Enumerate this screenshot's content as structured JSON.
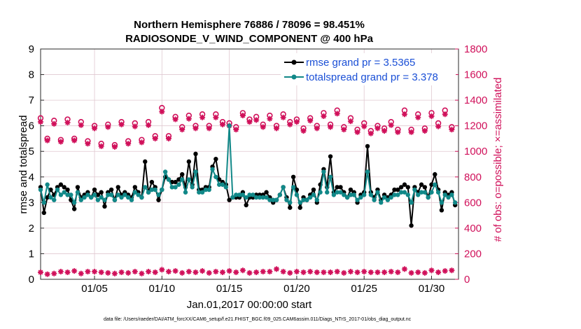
{
  "chart_data": {
    "type": "line",
    "title_line1": "Northern Hemisphere 76886 / 78096 = 98.451%",
    "title_line2": "RADIOSONDE_V_WIND_COMPONENT @ 400 hPa",
    "xlabel": "Jan.01,2017 00:00:00 start",
    "ylabel_left": "rmse and totalspread",
    "ylabel_right": "# of obs: o=possible; ×=assimilated",
    "footer": "data file: /Users/raeder/DAI/ATM_forcXX/CAM6_setup/f.e21.FHIST_BGC.f09_025.CAM6assim.011/Diags_NTrS_2017-01/obs_diag_output.nc",
    "xlim": [
      1,
      32
    ],
    "ylim_left": [
      0,
      9
    ],
    "ylim_right": [
      0,
      1800
    ],
    "x_ticks": [
      5,
      10,
      15,
      20,
      25,
      30
    ],
    "x_tick_labels": [
      "01/05",
      "01/10",
      "01/15",
      "01/20",
      "01/25",
      "01/30"
    ],
    "y_left_ticks": [
      "0",
      "1",
      "2",
      "3",
      "4",
      "5",
      "6",
      "7",
      "8",
      "9"
    ],
    "y_right_ticks": [
      "0",
      "200",
      "400",
      "600",
      "800",
      "1000",
      "1200",
      "1400",
      "1600",
      "1800"
    ],
    "colors": {
      "rmse": "#000000",
      "spread": "#118888",
      "obs": "#d0105a",
      "grid": "#e0c8d0",
      "legend_text": "#1a4fd6"
    },
    "legend": [
      {
        "key": "rmse",
        "label": "rmse grand pr = 3.5365"
      },
      {
        "key": "spread",
        "label": "totalspread grand pr = 3.378"
      }
    ],
    "series": [
      {
        "name": "rmse",
        "axis": "left",
        "x": [
          1.0,
          1.25,
          1.5,
          1.75,
          2.0,
          2.25,
          2.5,
          2.75,
          3.0,
          3.25,
          3.5,
          3.75,
          4.0,
          4.25,
          4.5,
          4.75,
          5.0,
          5.25,
          5.5,
          5.75,
          6.0,
          6.25,
          6.5,
          6.75,
          7.0,
          7.25,
          7.5,
          7.75,
          8.0,
          8.25,
          8.5,
          8.75,
          9.0,
          9.25,
          9.5,
          9.75,
          10.0,
          10.25,
          10.5,
          10.75,
          11.0,
          11.25,
          11.5,
          11.75,
          12.0,
          12.25,
          12.5,
          12.75,
          13.0,
          13.25,
          13.5,
          13.75,
          14.0,
          14.25,
          14.5,
          14.75,
          15.0,
          15.25,
          15.5,
          15.75,
          16.0,
          16.25,
          16.5,
          16.75,
          17.0,
          17.25,
          17.5,
          17.75,
          18.0,
          18.25,
          18.5,
          18.75,
          19.0,
          19.25,
          19.5,
          19.75,
          20.0,
          20.25,
          20.5,
          20.75,
          21.0,
          21.25,
          21.5,
          21.75,
          22.0,
          22.25,
          22.5,
          22.75,
          23.0,
          23.25,
          23.5,
          23.75,
          24.0,
          24.25,
          24.5,
          24.75,
          25.0,
          25.25,
          25.5,
          25.75,
          26.0,
          26.25,
          26.5,
          26.75,
          27.0,
          27.25,
          27.5,
          27.75,
          28.0,
          28.25,
          28.5,
          28.75,
          29.0,
          29.25,
          29.5,
          29.75,
          30.0,
          30.25,
          30.5,
          30.75,
          31.0,
          31.25,
          31.5,
          31.75
        ],
        "y": [
          3.6,
          2.6,
          3.2,
          3.5,
          3.3,
          3.6,
          3.7,
          3.6,
          3.5,
          3.1,
          2.75,
          3.6,
          3.2,
          3.3,
          3.4,
          3.2,
          3.5,
          3.3,
          3.4,
          2.85,
          3.4,
          3.5,
          3.1,
          3.6,
          3.3,
          3.4,
          3.3,
          3.2,
          3.6,
          3.4,
          3.2,
          4.6,
          3.4,
          3.8,
          3.6,
          3.1,
          3.5,
          4.0,
          3.9,
          3.8,
          3.8,
          3.9,
          4.1,
          3.6,
          4.6,
          3.7,
          4.9,
          3.5,
          3.5,
          3.6,
          3.6,
          4.4,
          4.7,
          3.9,
          3.8,
          3.7,
          3.1,
          3.2,
          3.2,
          3.2,
          3.4,
          2.9,
          3.2,
          3.2,
          3.3,
          3.3,
          3.3,
          3.4,
          3.2,
          3.0,
          3.1,
          3.3,
          3.6,
          3.2,
          2.8,
          4.0,
          3.5,
          2.8,
          3.2,
          3.1,
          3.3,
          3.5,
          3.0,
          3.7,
          4.3,
          3.6,
          4.8,
          3.4,
          3.6,
          3.6,
          3.4,
          3.2,
          3.5,
          3.4,
          3.0,
          3.3,
          3.4,
          5.2,
          3.4,
          3.2,
          3.5,
          3.1,
          3.3,
          3.2,
          3.3,
          3.5,
          3.5,
          3.6,
          3.7,
          3.6,
          2.1,
          3.6,
          3.4,
          3.7,
          3.6,
          3.2,
          3.7,
          4.1,
          3.5,
          2.7,
          3.4,
          3.3,
          3.4,
          2.9
        ]
      },
      {
        "name": "totalspread",
        "axis": "left",
        "x": [
          1.0,
          1.25,
          1.5,
          1.75,
          2.0,
          2.25,
          2.5,
          2.75,
          3.0,
          3.25,
          3.5,
          3.75,
          4.0,
          4.25,
          4.5,
          4.75,
          5.0,
          5.25,
          5.5,
          5.75,
          6.0,
          6.25,
          6.5,
          6.75,
          7.0,
          7.25,
          7.5,
          7.75,
          8.0,
          8.25,
          8.5,
          8.75,
          9.0,
          9.25,
          9.5,
          9.75,
          10.0,
          10.25,
          10.5,
          10.75,
          11.0,
          11.25,
          11.5,
          11.75,
          12.0,
          12.25,
          12.5,
          12.75,
          13.0,
          13.25,
          13.5,
          13.75,
          14.0,
          14.25,
          14.5,
          14.75,
          15.0,
          15.25,
          15.5,
          15.75,
          16.0,
          16.25,
          16.5,
          16.75,
          17.0,
          17.25,
          17.5,
          17.75,
          18.0,
          18.25,
          18.5,
          18.75,
          19.0,
          19.25,
          19.5,
          19.75,
          20.0,
          20.25,
          20.5,
          20.75,
          21.0,
          21.25,
          21.5,
          21.75,
          22.0,
          22.25,
          22.5,
          22.75,
          23.0,
          23.25,
          23.5,
          23.75,
          24.0,
          24.25,
          24.5,
          24.75,
          25.0,
          25.25,
          25.5,
          25.75,
          26.0,
          26.25,
          26.5,
          26.75,
          27.0,
          27.25,
          27.5,
          27.75,
          28.0,
          28.25,
          28.5,
          28.75,
          29.0,
          29.25,
          29.5,
          29.75,
          30.0,
          30.25,
          30.5,
          30.75,
          31.0,
          31.25,
          31.5,
          31.75
        ],
        "y": [
          3.5,
          3.0,
          3.7,
          3.2,
          3.1,
          3.5,
          3.3,
          3.4,
          3.3,
          3.3,
          3.0,
          3.4,
          3.1,
          3.2,
          3.3,
          3.2,
          3.3,
          3.1,
          3.2,
          3.1,
          3.3,
          3.3,
          3.1,
          3.3,
          3.2,
          3.3,
          3.2,
          3.1,
          3.4,
          3.3,
          3.2,
          3.6,
          3.4,
          3.5,
          3.5,
          3.3,
          3.5,
          4.2,
          3.9,
          3.6,
          3.6,
          3.7,
          3.9,
          3.4,
          3.9,
          3.6,
          4.2,
          3.4,
          3.4,
          3.5,
          3.5,
          4.3,
          4.0,
          3.7,
          3.7,
          3.6,
          6.0,
          3.2,
          3.3,
          3.3,
          3.3,
          3.2,
          3.3,
          3.3,
          3.2,
          3.2,
          3.2,
          3.2,
          3.1,
          3.1,
          3.1,
          3.3,
          3.6,
          3.1,
          3.0,
          3.6,
          3.3,
          3.0,
          3.1,
          3.1,
          3.2,
          3.3,
          3.1,
          3.4,
          4.2,
          3.4,
          4.0,
          3.3,
          3.4,
          3.4,
          3.3,
          3.2,
          3.3,
          3.3,
          3.1,
          3.2,
          3.3,
          4.2,
          3.3,
          3.1,
          3.4,
          3.0,
          3.2,
          3.1,
          3.2,
          3.3,
          3.3,
          3.4,
          3.4,
          3.3,
          3.0,
          3.5,
          3.3,
          3.4,
          3.4,
          3.2,
          3.4,
          3.7,
          3.4,
          3.0,
          3.3,
          3.2,
          3.3,
          3.0
        ]
      },
      {
        "name": "obs_possible",
        "axis": "right",
        "x": [
          1.0,
          1.5,
          2.0,
          2.5,
          3.0,
          3.5,
          4.0,
          4.5,
          5.0,
          5.5,
          6.0,
          6.5,
          7.0,
          7.5,
          8.0,
          8.5,
          9.0,
          9.5,
          10.0,
          10.5,
          11.0,
          11.5,
          12.0,
          12.5,
          13.0,
          13.5,
          14.0,
          14.5,
          15.0,
          15.5,
          16.0,
          16.5,
          17.0,
          17.5,
          18.0,
          18.5,
          19.0,
          19.5,
          20.0,
          20.5,
          21.0,
          21.5,
          22.0,
          22.5,
          23.0,
          23.5,
          24.0,
          24.5,
          25.0,
          25.5,
          26.0,
          26.5,
          27.0,
          27.5,
          28.0,
          28.5,
          29.0,
          29.5,
          30.0,
          30.5,
          31.0,
          31.5
        ],
        "y": [
          1260,
          1100,
          1240,
          1090,
          1250,
          1100,
          1230,
          1080,
          1200,
          1060,
          1210,
          1050,
          1230,
          1080,
          1220,
          1090,
          1230,
          1120,
          1340,
          1120,
          1270,
          1190,
          1280,
          1200,
          1290,
          1200,
          1290,
          1230,
          1220,
          1190,
          1300,
          1250,
          1270,
          1210,
          1280,
          1200,
          1290,
          1230,
          1250,
          1180,
          1260,
          1200,
          1300,
          1210,
          1320,
          1190,
          1260,
          1170,
          1220,
          1160,
          1200,
          1180,
          1230,
          1170,
          1320,
          1170,
          1290,
          1180,
          1300,
          1220,
          1320,
          1190
        ]
      },
      {
        "name": "obs_assimilated",
        "axis": "right",
        "x": [
          1.0,
          1.5,
          2.0,
          2.5,
          3.0,
          3.5,
          4.0,
          4.5,
          5.0,
          5.5,
          6.0,
          6.5,
          7.0,
          7.5,
          8.0,
          8.5,
          9.0,
          9.5,
          10.0,
          10.5,
          11.0,
          11.5,
          12.0,
          12.5,
          13.0,
          13.5,
          14.0,
          14.5,
          15.0,
          15.5,
          16.0,
          16.5,
          17.0,
          17.5,
          18.0,
          18.5,
          19.0,
          19.5,
          20.0,
          20.5,
          21.0,
          21.5,
          22.0,
          22.5,
          23.0,
          23.5,
          24.0,
          24.5,
          25.0,
          25.5,
          26.0,
          26.5,
          27.0,
          27.5,
          28.0,
          28.5,
          29.0,
          29.5,
          30.0,
          30.5,
          31.0,
          31.5
        ],
        "y": [
          1230,
          1085,
          1215,
          1075,
          1225,
          1085,
          1205,
          1060,
          1180,
          1040,
          1190,
          1035,
          1210,
          1060,
          1195,
          1070,
          1205,
          1100,
          1310,
          1100,
          1250,
          1170,
          1255,
          1180,
          1265,
          1180,
          1265,
          1210,
          1200,
          1170,
          1280,
          1230,
          1245,
          1190,
          1255,
          1180,
          1265,
          1210,
          1230,
          1160,
          1240,
          1180,
          1275,
          1190,
          1295,
          1170,
          1235,
          1150,
          1195,
          1140,
          1180,
          1160,
          1205,
          1150,
          1290,
          1150,
          1265,
          1160,
          1275,
          1195,
          1290,
          1170
        ]
      },
      {
        "name": "obs_bottom",
        "axis": "right",
        "x": [
          1.0,
          1.5,
          2.0,
          2.5,
          3.0,
          3.5,
          4.0,
          4.5,
          5.0,
          5.5,
          6.0,
          6.5,
          7.0,
          7.5,
          8.0,
          8.5,
          9.0,
          9.5,
          10.0,
          10.5,
          11.0,
          11.5,
          12.0,
          12.5,
          13.0,
          13.5,
          14.0,
          14.5,
          15.0,
          15.5,
          16.0,
          16.5,
          17.0,
          17.5,
          18.0,
          18.5,
          19.0,
          19.5,
          20.0,
          20.5,
          21.0,
          21.5,
          22.0,
          22.5,
          23.0,
          23.5,
          24.0,
          24.5,
          25.0,
          25.5,
          26.0,
          26.5,
          27.0,
          27.5,
          28.0,
          28.5,
          29.0,
          29.5,
          30.0,
          30.5,
          31.0,
          31.5
        ],
        "y": [
          55,
          40,
          45,
          60,
          55,
          65,
          45,
          60,
          60,
          55,
          50,
          45,
          55,
          50,
          60,
          45,
          60,
          55,
          75,
          60,
          65,
          50,
          60,
          55,
          65,
          50,
          60,
          55,
          65,
          55,
          70,
          50,
          55,
          60,
          60,
          80,
          60,
          50,
          60,
          55,
          60,
          55,
          55,
          55,
          60,
          50,
          60,
          55,
          60,
          55,
          55,
          55,
          60,
          55,
          80,
          50,
          55,
          50,
          70,
          55,
          65,
          70
        ]
      }
    ]
  }
}
